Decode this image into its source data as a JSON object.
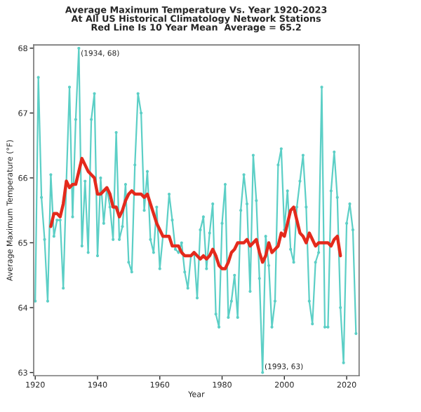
{
  "chart_data": {
    "type": "line",
    "title": "Average Maximum Temperature Vs. Year 1920-2023\nAt All US Historical Climatology Network Stations\nRed Line Is 10 Year Mean  Average = 65.2",
    "xlabel": "Year",
    "ylabel": "Average Maximum Temperature (°F)",
    "xlim": [
      1919.5,
      2024
    ],
    "ylim": [
      62.95,
      68.05
    ],
    "xticks": [
      1920,
      1940,
      1960,
      1980,
      2000,
      2020
    ],
    "yticks": [
      63,
      64,
      65,
      66,
      67,
      68
    ],
    "grid": false,
    "annotations": [
      {
        "text": "(1934, 68)",
        "x": 1934,
        "y": 68
      },
      {
        "text": "(1993, 63)",
        "x": 1993,
        "y": 63
      }
    ],
    "series": [
      {
        "color": "#5ccfc6",
        "marker": "circle",
        "x": [
          1920,
          1921,
          1922,
          1923,
          1924,
          1925,
          1926,
          1927,
          1928,
          1929,
          1930,
          1931,
          1932,
          1933,
          1934,
          1935,
          1936,
          1937,
          1938,
          1939,
          1940,
          1941,
          1942,
          1943,
          1944,
          1945,
          1946,
          1947,
          1948,
          1949,
          1950,
          1951,
          1952,
          1953,
          1954,
          1955,
          1956,
          1957,
          1958,
          1959,
          1960,
          1961,
          1962,
          1963,
          1964,
          1965,
          1966,
          1967,
          1968,
          1969,
          1970,
          1971,
          1972,
          1973,
          1974,
          1975,
          1976,
          1977,
          1978,
          1979,
          1980,
          1981,
          1982,
          1983,
          1984,
          1985,
          1986,
          1987,
          1988,
          1989,
          1990,
          1991,
          1992,
          1993,
          1994,
          1995,
          1996,
          1997,
          1998,
          1999,
          2000,
          2001,
          2002,
          2003,
          2004,
          2005,
          2006,
          2007,
          2008,
          2009,
          2010,
          2011,
          2012,
          2013,
          2014,
          2015,
          2016,
          2017,
          2018,
          2019,
          2020,
          2021,
          2022,
          2023
        ],
        "values": [
          64.1,
          67.55,
          65.7,
          65.05,
          64.1,
          66.05,
          65.1,
          65.35,
          65.35,
          64.3,
          65.95,
          67.4,
          65.4,
          66.9,
          68,
          64.95,
          65.95,
          64.85,
          66.9,
          67.3,
          64.8,
          66.0,
          65.3,
          65.85,
          65.55,
          65.05,
          66.7,
          65.05,
          65.25,
          65.9,
          64.7,
          64.55,
          66.2,
          67.3,
          67.0,
          65.5,
          66.1,
          65.05,
          64.85,
          65.55,
          64.6,
          65.1,
          65.1,
          65.75,
          65.35,
          64.9,
          64.85,
          65.0,
          64.55,
          64.3,
          64.8,
          64.85,
          64.15,
          65.2,
          65.4,
          64.6,
          65.15,
          65.6,
          63.9,
          63.7,
          65.3,
          65.9,
          63.85,
          64.1,
          64.5,
          63.85,
          65.5,
          66.05,
          65.6,
          64.25,
          66.35,
          65.65,
          64.45,
          63,
          65.1,
          64.65,
          63.7,
          64.1,
          66.2,
          66.45,
          65.2,
          65.8,
          64.9,
          64.7,
          65.55,
          65.95,
          66.35,
          65.55,
          64.1,
          63.75,
          64.7,
          64.85,
          67.4,
          63.7,
          63.7,
          65.8,
          66.4,
          65.7,
          64.0,
          63.15,
          65.3,
          65.6,
          65.2,
          63.6
        ]
      },
      {
        "color": "#e42a1c",
        "marker": "none",
        "x": [
          1925,
          1926,
          1927,
          1928,
          1929,
          1930,
          1931,
          1932,
          1933,
          1934,
          1935,
          1936,
          1937,
          1938,
          1939,
          1940,
          1941,
          1942,
          1943,
          1944,
          1945,
          1946,
          1947,
          1948,
          1949,
          1950,
          1951,
          1952,
          1953,
          1954,
          1955,
          1956,
          1957,
          1958,
          1959,
          1960,
          1961,
          1962,
          1963,
          1964,
          1965,
          1966,
          1967,
          1968,
          1969,
          1970,
          1971,
          1972,
          1973,
          1974,
          1975,
          1976,
          1977,
          1978,
          1979,
          1980,
          1981,
          1982,
          1983,
          1984,
          1985,
          1986,
          1987,
          1988,
          1989,
          1990,
          1991,
          1992,
          1993,
          1994,
          1995,
          1996,
          1997,
          1998,
          1999,
          2000,
          2001,
          2002,
          2003,
          2004,
          2005,
          2006,
          2007,
          2008,
          2009,
          2010,
          2011,
          2012,
          2013,
          2014,
          2015,
          2016,
          2017,
          2018
        ],
        "values": [
          65.25,
          65.45,
          65.45,
          65.4,
          65.6,
          65.95,
          65.85,
          65.9,
          65.9,
          66.1,
          66.3,
          66.2,
          66.1,
          66.05,
          66.0,
          65.75,
          65.75,
          65.8,
          65.85,
          65.75,
          65.55,
          65.55,
          65.4,
          65.5,
          65.65,
          65.75,
          65.8,
          65.75,
          65.75,
          65.75,
          65.7,
          65.75,
          65.6,
          65.45,
          65.3,
          65.2,
          65.1,
          65.1,
          65.1,
          64.95,
          64.95,
          64.95,
          64.85,
          64.8,
          64.8,
          64.8,
          64.85,
          64.8,
          64.75,
          64.8,
          64.75,
          64.8,
          64.9,
          64.8,
          64.65,
          64.6,
          64.6,
          64.7,
          64.85,
          64.9,
          65.0,
          65.0,
          65.0,
          65.05,
          64.95,
          65.0,
          65.05,
          64.85,
          64.7,
          64.8,
          65.0,
          64.85,
          64.9,
          64.95,
          65.15,
          65.1,
          65.3,
          65.5,
          65.55,
          65.35,
          65.15,
          65.1,
          65.0,
          65.15,
          65.05,
          64.95,
          65.0,
          65.0,
          65.0,
          65.0,
          64.95,
          65.05,
          65.1,
          64.8
        ]
      }
    ]
  }
}
